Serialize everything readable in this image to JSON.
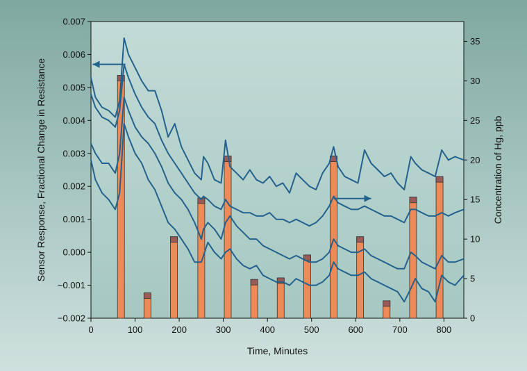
{
  "chart_data": {
    "type": "bar+line",
    "xlabel": "Time, Minutes",
    "ylabel_left": "Sensor Response, Fractional Change in Resistance",
    "ylabel_right": "Concentration of Hg, ppb",
    "xlim": [
      0,
      845
    ],
    "ylim_left": [
      -0.002,
      0.007
    ],
    "ylim_right": [
      0,
      37.5
    ],
    "x_ticks": [
      "0",
      "100",
      "200",
      "300",
      "400",
      "500",
      "600",
      "700",
      "800"
    ],
    "y_left_ticks": [
      "0.007",
      "0.006",
      "0.005",
      "0.004",
      "0.003",
      "0.002",
      "0.001",
      "0.000",
      "−0.001",
      "−0.002"
    ],
    "y_right_ticks": [
      "35",
      "30",
      "25",
      "20",
      "15",
      "10",
      "5",
      "0"
    ],
    "grid": false,
    "colors": {
      "bar": "#ee8a57",
      "bar_cap": "#9a5a55",
      "line": "#23618e",
      "arrow": "#23618e",
      "plot_bg_top": "#c3dbd6",
      "plot_bg_bottom": "#a6c8c1"
    },
    "annotations": [
      {
        "type": "arrow",
        "direction": "left",
        "meaning": "left-axis"
      },
      {
        "type": "arrow",
        "direction": "right",
        "meaning": "right-axis"
      }
    ],
    "bars": {
      "name": "Concentration of Hg, ppb",
      "axis": "right",
      "x": [
        68,
        128,
        188,
        250,
        310,
        370,
        430,
        490,
        550,
        610,
        670,
        730,
        790
      ],
      "values": [
        30.7,
        3.2,
        10.3,
        15.2,
        20.5,
        4.9,
        5.1,
        8.0,
        20.5,
        10.3,
        2.2,
        15.3,
        17.9
      ]
    },
    "series": [
      {
        "axis": "left",
        "x": [
          0,
          10,
          25,
          40,
          55,
          65,
          75,
          85,
          100,
          115,
          130,
          145,
          160,
          175,
          190,
          205,
          220,
          235,
          250,
          255,
          265,
          280,
          295,
          305,
          315,
          330,
          345,
          360,
          375,
          390,
          405,
          420,
          435,
          450,
          465,
          480,
          495,
          510,
          525,
          540,
          550,
          560,
          575,
          590,
          605,
          620,
          635,
          650,
          665,
          680,
          695,
          710,
          725,
          735,
          750,
          765,
          780,
          795,
          810,
          825,
          845
        ],
        "values": [
          0.0053,
          0.0047,
          0.0044,
          0.0043,
          0.0041,
          0.0046,
          0.0065,
          0.006,
          0.0056,
          0.0052,
          0.0049,
          0.0049,
          0.0043,
          0.0035,
          0.0039,
          0.0032,
          0.0028,
          0.0024,
          0.0022,
          0.0029,
          0.0027,
          0.0022,
          0.0021,
          0.0034,
          0.0026,
          0.0024,
          0.0022,
          0.0025,
          0.0022,
          0.0021,
          0.0023,
          0.002,
          0.0021,
          0.0018,
          0.0024,
          0.0022,
          0.002,
          0.0019,
          0.0024,
          0.0027,
          0.0032,
          0.0026,
          0.0023,
          0.0022,
          0.0021,
          0.0031,
          0.0027,
          0.0025,
          0.0023,
          0.0024,
          0.0021,
          0.0019,
          0.0029,
          0.0027,
          0.0025,
          0.0024,
          0.0023,
          0.0031,
          0.0028,
          0.0029,
          0.0028
        ]
      },
      {
        "axis": "left",
        "x": [
          0,
          10,
          25,
          40,
          55,
          65,
          75,
          85,
          100,
          115,
          130,
          145,
          160,
          175,
          190,
          205,
          220,
          235,
          250,
          255,
          265,
          280,
          295,
          305,
          315,
          330,
          345,
          360,
          375,
          390,
          405,
          420,
          435,
          450,
          465,
          480,
          495,
          510,
          525,
          540,
          550,
          560,
          575,
          590,
          605,
          620,
          635,
          650,
          665,
          680,
          695,
          710,
          725,
          735,
          750,
          765,
          780,
          795,
          810,
          825,
          845
        ],
        "values": [
          0.0048,
          0.0044,
          0.0041,
          0.004,
          0.0038,
          0.0043,
          0.0057,
          0.0053,
          0.0048,
          0.0044,
          0.0041,
          0.0039,
          0.0034,
          0.003,
          0.0027,
          0.0024,
          0.0021,
          0.0018,
          0.0016,
          0.0017,
          0.0016,
          0.0014,
          0.0013,
          0.0016,
          0.0014,
          0.0013,
          0.0012,
          0.0012,
          0.0011,
          0.0011,
          0.0012,
          0.001,
          0.001,
          0.0009,
          0.001,
          0.0009,
          0.0008,
          0.0009,
          0.0011,
          0.0014,
          0.0017,
          0.0015,
          0.0014,
          0.0013,
          0.0013,
          0.0014,
          0.0013,
          0.0012,
          0.0011,
          0.0011,
          0.001,
          0.0009,
          0.0013,
          0.0013,
          0.0012,
          0.0011,
          0.0011,
          0.0012,
          0.0011,
          0.0012,
          0.0013
        ]
      },
      {
        "axis": "left",
        "x": [
          0,
          10,
          25,
          40,
          55,
          65,
          75,
          85,
          100,
          115,
          130,
          145,
          160,
          175,
          190,
          205,
          220,
          235,
          250,
          255,
          265,
          280,
          295,
          305,
          315,
          330,
          345,
          360,
          375,
          390,
          405,
          420,
          435,
          450,
          465,
          480,
          495,
          510,
          525,
          540,
          550,
          560,
          575,
          590,
          605,
          620,
          635,
          650,
          665,
          680,
          695,
          710,
          725,
          735,
          750,
          765,
          780,
          795,
          810,
          825,
          845
        ],
        "values": [
          0.0033,
          0.003,
          0.0027,
          0.0027,
          0.0024,
          0.003,
          0.0047,
          0.0043,
          0.0038,
          0.0035,
          0.0033,
          0.003,
          0.0026,
          0.0021,
          0.0018,
          0.0016,
          0.0013,
          0.0009,
          0.0004,
          0.0007,
          0.0009,
          0.0007,
          0.0004,
          0.0009,
          0.0011,
          0.0008,
          0.0006,
          0.0004,
          0.0004,
          0.0002,
          0.0001,
          0.0,
          -0.0001,
          -0.0002,
          -0.0001,
          -0.0002,
          -0.0003,
          -0.0003,
          -0.0002,
          0.0,
          0.0004,
          0.0002,
          0.0001,
          0.0,
          0.0,
          0.0001,
          -0.0001,
          -0.0002,
          -0.0003,
          -0.0004,
          -0.0005,
          -0.0005,
          0.0,
          -0.0001,
          -0.0003,
          -0.0004,
          -0.0005,
          -0.0001,
          -0.0003,
          -0.0003,
          -0.0002
        ]
      },
      {
        "axis": "left",
        "x": [
          0,
          10,
          25,
          40,
          55,
          65,
          75,
          85,
          100,
          115,
          130,
          145,
          160,
          175,
          190,
          205,
          220,
          235,
          250,
          255,
          265,
          280,
          295,
          305,
          315,
          330,
          345,
          360,
          375,
          390,
          405,
          420,
          435,
          450,
          465,
          480,
          495,
          510,
          525,
          540,
          550,
          560,
          575,
          590,
          605,
          620,
          635,
          650,
          665,
          680,
          695,
          710,
          725,
          735,
          750,
          765,
          780,
          795,
          810,
          825,
          845
        ],
        "values": [
          0.0028,
          0.0022,
          0.0018,
          0.0016,
          0.0013,
          0.0018,
          0.0039,
          0.0035,
          0.003,
          0.0027,
          0.0022,
          0.0019,
          0.0014,
          0.0009,
          0.0007,
          0.0004,
          0.0001,
          -0.0003,
          -0.0003,
          -0.0001,
          0.0003,
          0.0,
          -0.0002,
          0.0,
          0.0001,
          -0.0002,
          -0.0004,
          -0.0005,
          -0.0004,
          -0.0007,
          -0.0008,
          -0.0009,
          -0.0009,
          -0.001,
          -0.0008,
          -0.0009,
          -0.001,
          -0.001,
          -0.0009,
          -0.0007,
          -0.0003,
          -0.0005,
          -0.0006,
          -0.0007,
          -0.0007,
          -0.0006,
          -0.0008,
          -0.0009,
          -0.001,
          -0.0011,
          -0.0012,
          -0.0015,
          -0.0011,
          -0.0008,
          -0.0011,
          -0.0012,
          -0.0015,
          -0.0007,
          -0.0009,
          -0.001,
          -0.0007
        ]
      }
    ]
  }
}
